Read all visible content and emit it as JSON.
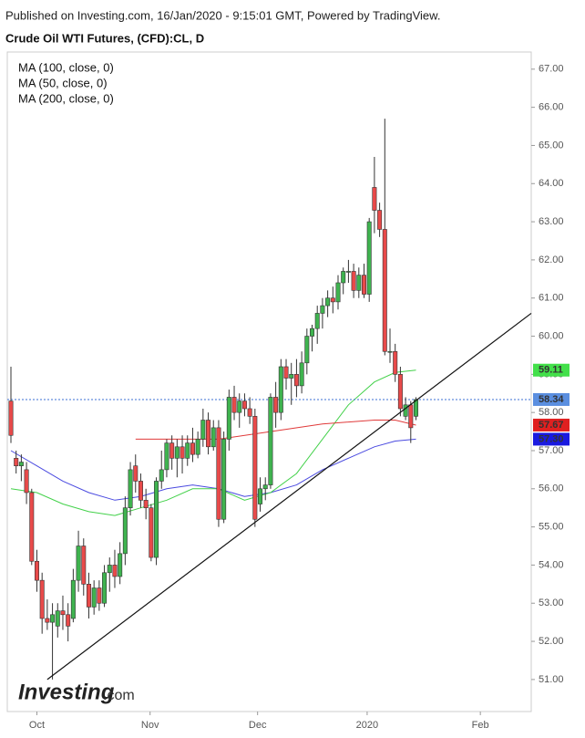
{
  "chart_data": {
    "type": "candlestick",
    "published": "Published on Investing.com, 16/Jan/2020 - 9:15:01 GMT, Powered by TradingView.",
    "title": "Crude Oil WTI Futures, (CFD):CL, D",
    "logo": [
      "Investing",
      ".com"
    ],
    "up_color": "#3fb34f",
    "down_color": "#e84a4a",
    "xlim": [
      -0.7,
      100.2
    ],
    "xticks": [
      {
        "value": 5,
        "label": "Oct"
      },
      {
        "value": 26.8,
        "label": "Nov"
      },
      {
        "value": 47.5,
        "label": "Dec"
      },
      {
        "value": 68.6,
        "label": "2020"
      },
      {
        "value": 90.4,
        "label": "Feb"
      }
    ],
    "ylim": [
      50.16,
      67.45
    ],
    "yticks": [
      {
        "value": 51,
        "label": "51.00"
      },
      {
        "value": 52,
        "label": "52.00"
      },
      {
        "value": 53,
        "label": "53.00"
      },
      {
        "value": 54,
        "label": "54.00"
      },
      {
        "value": 55,
        "label": "55.00"
      },
      {
        "value": 56,
        "label": "56.00"
      },
      {
        "value": 57,
        "label": "57.00"
      },
      {
        "value": 58,
        "label": "58.00"
      },
      {
        "value": 59,
        "label": "59.00"
      },
      {
        "value": 60,
        "label": "60.00"
      },
      {
        "value": 61,
        "label": "61.00"
      },
      {
        "value": 62,
        "label": "62.00"
      },
      {
        "value": 63,
        "label": "63.00"
      },
      {
        "value": 64,
        "label": "64.00"
      },
      {
        "value": 65,
        "label": "65.00"
      },
      {
        "value": 66,
        "label": "66.00"
      },
      {
        "value": 67,
        "label": "67.00"
      }
    ],
    "open": [
      58.3,
      56.8,
      56.6,
      56.5,
      55.9,
      54.1,
      53.6,
      52.6,
      52.5,
      52.4,
      52.8,
      52.7,
      52.6,
      53.6,
      54.5,
      53.5,
      52.9,
      53.4,
      53.0,
      53.8,
      54.0,
      53.7,
      54.3,
      55.5,
      56.6,
      56.2,
      55.7,
      55.5,
      54.2,
      56.2,
      56.5,
      57.2,
      56.8,
      57.1,
      56.8,
      57.2,
      56.9,
      57.3,
      57.8,
      57.1,
      57.6,
      55.2,
      57.3,
      58.4,
      58.0,
      58.3,
      58.1,
      57.9,
      55.6,
      56.0,
      56.1,
      58.4,
      58.0,
      59.2,
      58.9,
      59.0,
      58.7,
      59.3,
      60.0,
      60.2,
      60.6,
      60.8,
      61.0,
      60.9,
      61.4,
      61.7,
      61.7,
      61.2,
      61.6,
      61.1,
      63.9,
      63.3,
      62.8,
      59.6,
      59.6,
      59.0,
      57.9,
      58.2,
      57.9
    ],
    "high": [
      59.2,
      57.0,
      56.9,
      56.7,
      56.0,
      54.4,
      53.8,
      53.1,
      53.0,
      53.0,
      53.2,
      53.0,
      53.9,
      54.9,
      54.7,
      53.8,
      53.6,
      53.6,
      54.0,
      54.2,
      54.4,
      54.6,
      55.8,
      56.7,
      56.9,
      56.4,
      56.0,
      55.6,
      56.3,
      57.0,
      57.3,
      57.4,
      57.3,
      57.4,
      57.4,
      57.6,
      57.5,
      58.1,
      58.0,
      57.8,
      57.8,
      57.5,
      58.6,
      58.7,
      58.5,
      58.5,
      58.4,
      58.1,
      56.3,
      56.3,
      58.5,
      58.8,
      59.4,
      59.4,
      59.3,
      59.4,
      59.6,
      60.2,
      60.3,
      60.8,
      61.0,
      61.2,
      61.3,
      61.6,
      61.8,
      62.0,
      61.9,
      61.8,
      61.9,
      63.1,
      64.7,
      63.5,
      65.7,
      60.2,
      59.8,
      59.2,
      58.4,
      58.3,
      58.4
    ],
    "low": [
      57.2,
      56.4,
      56.2,
      55.6,
      54.0,
      53.3,
      52.2,
      52.3,
      51.0,
      52.1,
      52.3,
      52.0,
      52.5,
      53.3,
      53.2,
      52.6,
      52.7,
      52.8,
      52.9,
      53.3,
      53.4,
      53.5,
      54.0,
      55.3,
      55.9,
      55.5,
      55.2,
      54.1,
      54.0,
      56.0,
      56.3,
      56.5,
      56.3,
      56.4,
      56.6,
      56.7,
      56.8,
      57.1,
      56.9,
      57.0,
      55.0,
      55.1,
      57.0,
      57.8,
      57.6,
      57.9,
      57.7,
      55.0,
      55.4,
      55.7,
      56.0,
      57.6,
      57.8,
      58.6,
      58.2,
      58.4,
      58.5,
      59.0,
      59.6,
      59.8,
      60.2,
      60.5,
      60.6,
      60.7,
      61.1,
      61.4,
      61.0,
      61.0,
      61.0,
      60.9,
      62.7,
      62.6,
      59.5,
      59.3,
      58.8,
      57.9,
      57.8,
      57.2,
      57.8
    ],
    "close": [
      57.4,
      56.6,
      56.7,
      55.9,
      54.1,
      53.6,
      52.6,
      52.5,
      52.7,
      52.8,
      52.7,
      52.4,
      53.6,
      54.5,
      53.5,
      52.9,
      53.4,
      53.0,
      53.8,
      54.0,
      53.7,
      54.3,
      55.5,
      56.5,
      56.2,
      55.7,
      55.5,
      54.2,
      56.2,
      56.5,
      57.2,
      56.8,
      57.1,
      56.8,
      57.2,
      56.9,
      57.3,
      57.8,
      57.1,
      57.6,
      55.2,
      57.3,
      58.4,
      58.0,
      58.3,
      58.1,
      57.9,
      55.2,
      56.0,
      56.1,
      58.4,
      58.0,
      59.2,
      58.9,
      59.0,
      58.7,
      59.3,
      60.0,
      60.2,
      60.6,
      60.8,
      61.0,
      60.9,
      61.4,
      61.7,
      61.7,
      61.2,
      61.6,
      61.1,
      63.0,
      63.3,
      62.8,
      59.6,
      59.6,
      59.0,
      58.1,
      58.2,
      57.6,
      58.34
    ],
    "series": [
      {
        "name": "MA (100, close, 0)",
        "color": "#4a4ae0",
        "x": [
          0,
          5,
          10,
          15,
          20,
          25,
          30,
          35,
          40,
          45,
          50,
          55,
          60,
          65,
          70,
          74,
          78
        ],
        "values": [
          57.0,
          56.6,
          56.2,
          55.9,
          55.7,
          55.8,
          56.0,
          56.1,
          56.0,
          55.8,
          55.9,
          56.1,
          56.5,
          56.8,
          57.1,
          57.25,
          57.3
        ]
      },
      {
        "name": "MA (50, close, 0)",
        "color": "#43d14a",
        "x": [
          0,
          5,
          10,
          15,
          20,
          25,
          30,
          35,
          40,
          45,
          50,
          55,
          60,
          65,
          70,
          74,
          78
        ],
        "values": [
          56.0,
          55.9,
          55.6,
          55.4,
          55.3,
          55.5,
          55.7,
          56.0,
          56.0,
          55.7,
          55.9,
          56.4,
          57.3,
          58.2,
          58.8,
          59.05,
          59.11
        ]
      },
      {
        "name": "MA (200, close, 0)",
        "color": "#e03a3a",
        "x": [
          24,
          30,
          40,
          50,
          60,
          70,
          74,
          78
        ],
        "values": [
          57.3,
          57.3,
          57.3,
          57.5,
          57.7,
          57.8,
          57.8,
          57.67
        ]
      }
    ],
    "trendline": {
      "x": [
        7,
        100.2
      ],
      "values": [
        51.0,
        60.6
      ],
      "color": "#111"
    },
    "price_line": {
      "value": 58.34,
      "color": "#3b6fd6"
    },
    "price_markers": [
      {
        "value": 59.11,
        "color": "#43e04a",
        "text_color": "#111"
      },
      {
        "value": 58.34,
        "color": "#5b8fe0",
        "text_color": "#fff"
      },
      {
        "value": 57.67,
        "color": "#e02020",
        "text_color": "#fff"
      },
      {
        "value": 57.3,
        "label": "57.30",
        "color": "#1a1ae0",
        "text_color": "#fff"
      }
    ]
  }
}
